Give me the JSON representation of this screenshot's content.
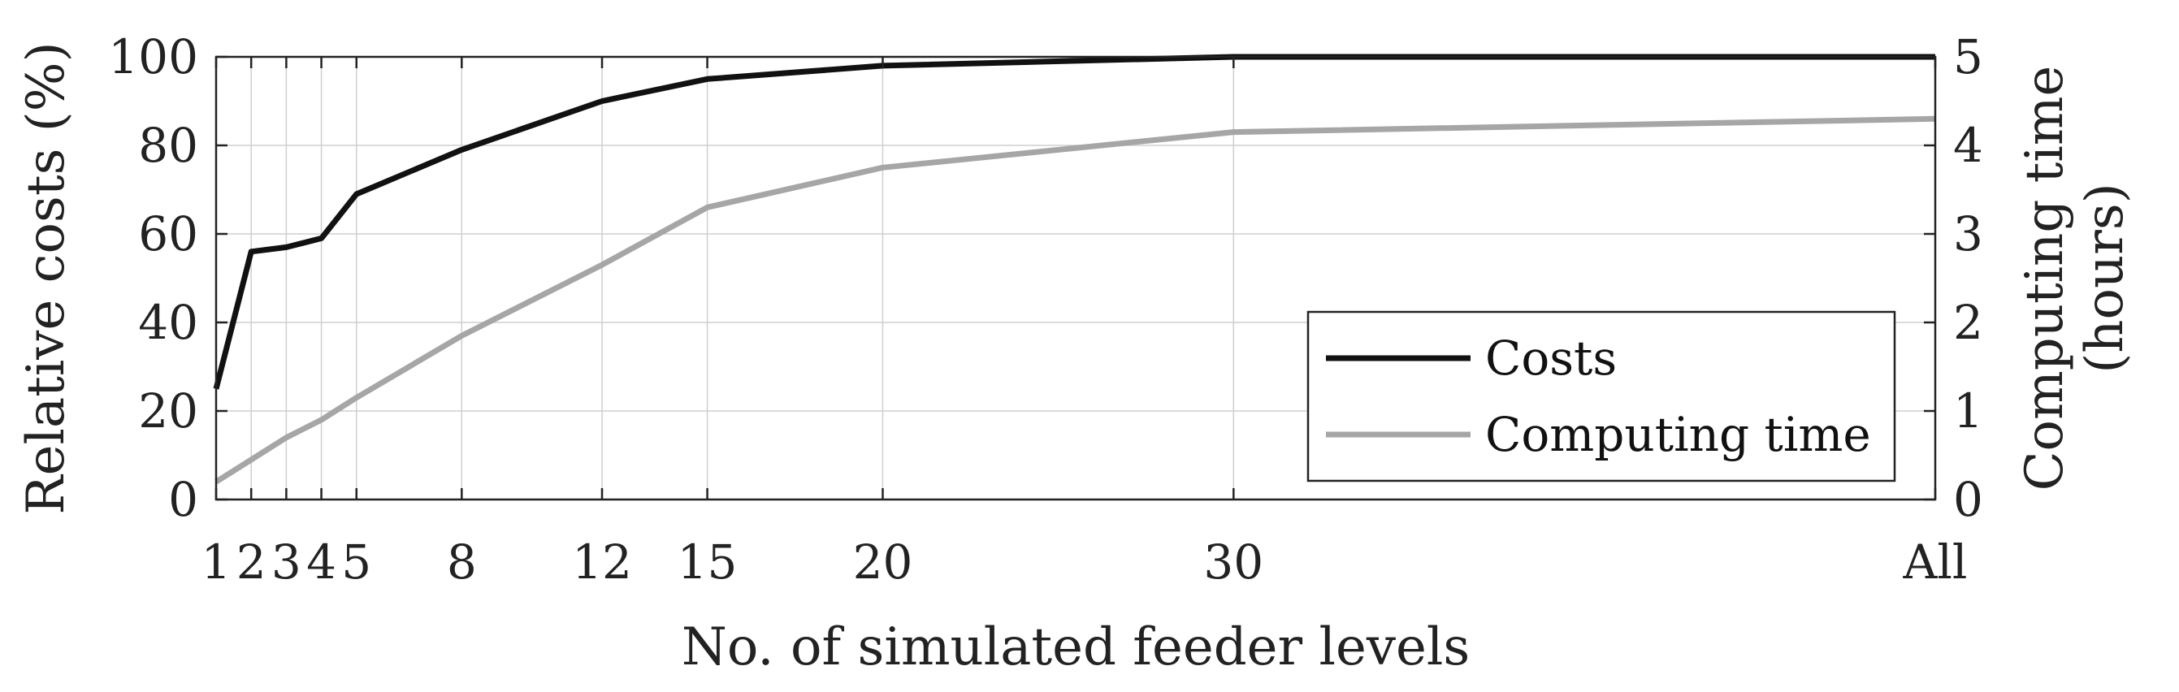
{
  "chart_data": {
    "type": "line",
    "xlabel": "No. of simulated feeder levels",
    "ylabel_left": "Relative costs (%)",
    "ylabel_right_line1": "Computing time",
    "ylabel_right_line2": "(hours)",
    "x_categories": [
      "1",
      "2",
      "3",
      "4",
      "5",
      "8",
      "12",
      "15",
      "20",
      "30",
      "All"
    ],
    "x_positions": [
      1,
      2,
      3,
      4,
      5,
      8,
      12,
      15,
      20,
      30,
      50
    ],
    "xlim": [
      1,
      50
    ],
    "ylim_left": [
      0,
      100
    ],
    "ylim_right": [
      0,
      5
    ],
    "yticks_left": [
      "0",
      "20",
      "40",
      "60",
      "80",
      "100"
    ],
    "yticks_right": [
      "0",
      "1",
      "2",
      "3",
      "4",
      "5"
    ],
    "grid": true,
    "legend_position": "bottom-right",
    "series": [
      {
        "name": "Costs",
        "axis": "left",
        "color": "#111111",
        "values": [
          25,
          56,
          57,
          59,
          69,
          79,
          90,
          95,
          98,
          100,
          100
        ]
      },
      {
        "name": "Computing time",
        "axis": "right",
        "color": "#a6a6a6",
        "values": [
          0.2,
          0.45,
          0.7,
          0.9,
          1.15,
          1.85,
          2.65,
          3.3,
          3.75,
          4.15,
          4.3
        ]
      }
    ]
  }
}
